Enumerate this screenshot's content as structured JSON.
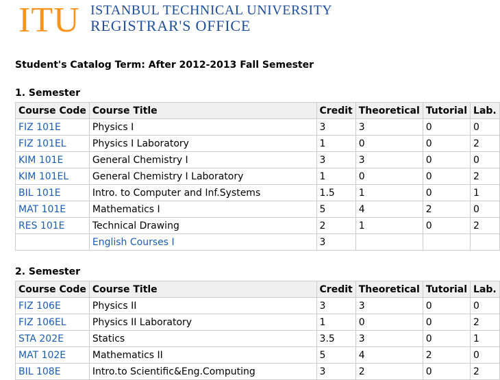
{
  "header": {
    "logo": "ITU",
    "university": "ISTANBUL TECHNICAL UNIVERSITY",
    "office": "REGISTRAR'S OFFICE"
  },
  "catalog_term": "Student's Catalog Term: After 2012-2013 Fall Semester",
  "semesters": [
    {
      "title": "1. Semester",
      "columns": [
        "Course Code",
        "Course Title",
        "Credit",
        "Theoretical",
        "Tutorial",
        "Lab."
      ],
      "rows": [
        [
          "FIZ 101E",
          "Physics I",
          "3",
          "3",
          "0",
          "0"
        ],
        [
          "FIZ 101EL",
          "Physics I Laboratory",
          "1",
          "0",
          "0",
          "2"
        ],
        [
          "KIM 101E",
          "General Chemistry I",
          "3",
          "3",
          "0",
          "0"
        ],
        [
          "KIM 101EL",
          "General Chemistry I Laboratory",
          "1",
          "0",
          "0",
          "2"
        ],
        [
          "BIL 101E",
          "Intro. to Computer and Inf.Systems",
          "1.5",
          "1",
          "0",
          "1"
        ],
        [
          "MAT 101E",
          "Mathematics I",
          "5",
          "4",
          "2",
          "0"
        ],
        [
          "RES 101E",
          "Technical Drawing",
          "2",
          "1",
          "0",
          "2"
        ],
        [
          null,
          "English Courses I",
          "3",
          null,
          null,
          null
        ]
      ]
    },
    {
      "title": "2. Semester",
      "columns": [
        "Course Code",
        "Course Title",
        "Credit",
        "Theoretical",
        "Tutorial",
        "Lab."
      ],
      "rows": [
        [
          "FIZ 106E",
          "Physics II",
          "3",
          "3",
          "0",
          "0"
        ],
        [
          "FIZ 106EL",
          "Physics II Laboratory",
          "1",
          "0",
          "0",
          "2"
        ],
        [
          "STA 202E",
          "Statics",
          "3.5",
          "3",
          "0",
          "1"
        ],
        [
          "MAT 102E",
          "Mathematics II",
          "5",
          "4",
          "2",
          "0"
        ],
        [
          "BIL 108E",
          "Intro.to Scientific&Eng.Computing",
          "3",
          "2",
          "0",
          "2"
        ]
      ]
    }
  ]
}
